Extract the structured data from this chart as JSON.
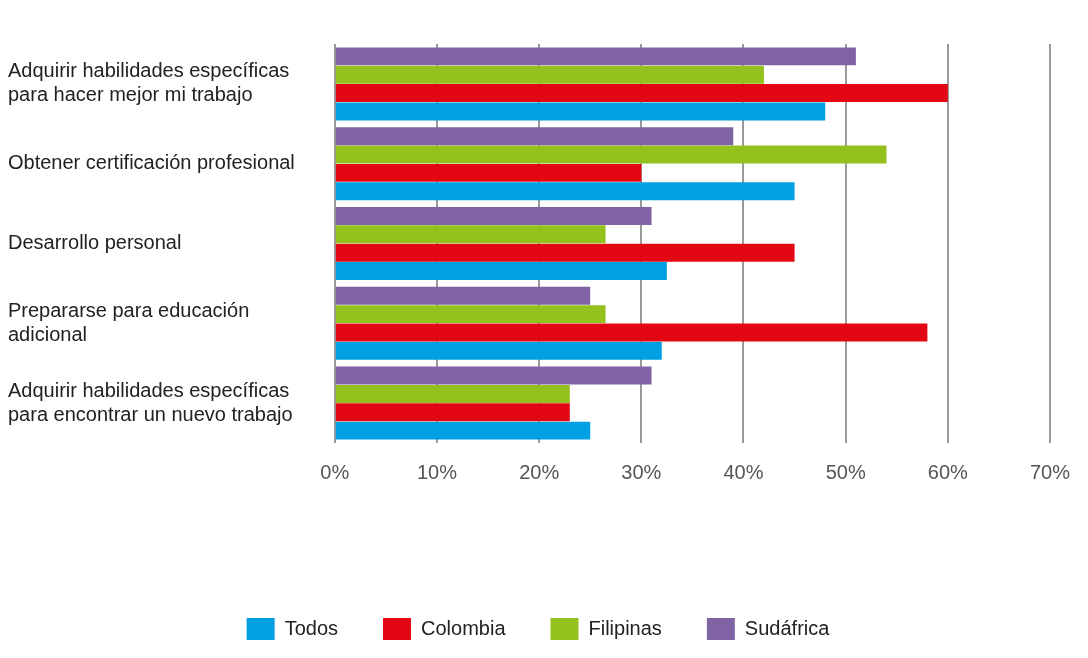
{
  "chart_data": {
    "type": "bar",
    "orientation": "horizontal",
    "categories": [
      "Adquirir habilidades específicas para hacer mejor mi trabajo",
      "Obtener certificación profesional",
      "Desarrollo personal",
      "Prepararse para educación adicional",
      "Adquirir habilidades específicas para encontrar un nuevo trabajo"
    ],
    "series": [
      {
        "name": "Todos",
        "color": "#00a0e3",
        "values": [
          48,
          45,
          32.5,
          32,
          25
        ]
      },
      {
        "name": "Colombia",
        "color": "#e30613",
        "values": [
          60,
          30,
          45,
          58,
          23
        ]
      },
      {
        "name": "Filipinas",
        "color": "#95c11f",
        "values": [
          42,
          54,
          26.5,
          26.5,
          23
        ]
      },
      {
        "name": "Sudáfrica",
        "color": "#8063a4",
        "values": [
          51,
          39,
          31,
          25,
          31
        ]
      }
    ],
    "xlim": [
      0,
      70
    ],
    "xticks": [
      {
        "value": 0,
        "label": "0%"
      },
      {
        "value": 10,
        "label": "10%"
      },
      {
        "value": 20,
        "label": "20%"
      },
      {
        "value": 30,
        "label": "30%"
      },
      {
        "value": 40,
        "label": "40%"
      },
      {
        "value": 50,
        "label": "50%"
      },
      {
        "value": 60,
        "label": "60%"
      },
      {
        "value": 70,
        "label": "70%"
      }
    ],
    "grid": "x",
    "legend": "bottom"
  }
}
